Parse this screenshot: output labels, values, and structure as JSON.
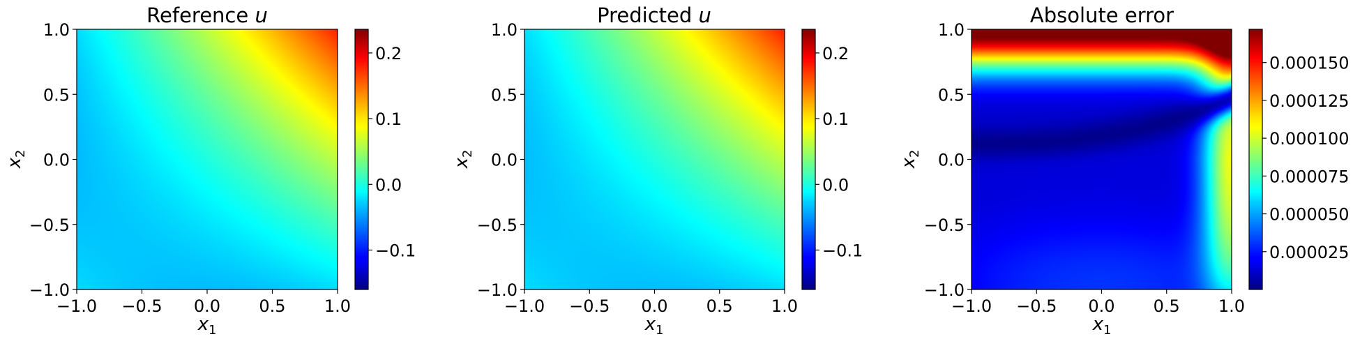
{
  "figure": {
    "colormap": "jet"
  },
  "chart_data": [
    {
      "type": "heatmap",
      "field": "reference",
      "title_prefix": "Reference ",
      "title_var": "u",
      "xlabel": {
        "var": "x",
        "sub": "1"
      },
      "ylabel": {
        "var": "x",
        "sub": "2"
      },
      "xlim": [
        -1.0,
        1.0
      ],
      "ylim": [
        -1.0,
        1.0
      ],
      "xticks": [
        -1.0,
        -0.5,
        0.0,
        0.5,
        1.0
      ],
      "xtick_labels": [
        "−1.0",
        "−0.5",
        "0.0",
        "0.5",
        "1.0"
      ],
      "yticks": [
        -1.0,
        -0.5,
        0.0,
        0.5,
        1.0
      ],
      "ytick_labels": [
        "−1.0",
        "−0.5",
        "0.0",
        "0.5",
        "1.0"
      ],
      "colorbar": {
        "range": [
          -0.16,
          0.236
        ],
        "ticks": [
          -0.1,
          0.0,
          0.1,
          0.2
        ],
        "tick_labels": [
          "−0.1",
          "0.0",
          "0.1",
          "0.2"
        ]
      }
    },
    {
      "type": "heatmap",
      "field": "predicted",
      "title_prefix": "Predicted ",
      "title_var": "u",
      "xlabel": {
        "var": "x",
        "sub": "1"
      },
      "ylabel": {
        "var": "x",
        "sub": "2"
      },
      "xlim": [
        -1.0,
        1.0
      ],
      "ylim": [
        -1.0,
        1.0
      ],
      "xticks": [
        -1.0,
        -0.5,
        0.0,
        0.5,
        1.0
      ],
      "xtick_labels": [
        "−1.0",
        "−0.5",
        "0.0",
        "0.5",
        "1.0"
      ],
      "yticks": [
        -1.0,
        -0.5,
        0.0,
        0.5,
        1.0
      ],
      "ytick_labels": [
        "−1.0",
        "−0.5",
        "0.0",
        "0.5",
        "1.0"
      ],
      "colorbar": {
        "range": [
          -0.16,
          0.236
        ],
        "ticks": [
          -0.1,
          0.0,
          0.1,
          0.2
        ],
        "tick_labels": [
          "−0.1",
          "0.0",
          "0.1",
          "0.2"
        ]
      }
    },
    {
      "type": "heatmap",
      "field": "error",
      "title_prefix": "Absolute error",
      "title_var": "",
      "xlabel": {
        "var": "x",
        "sub": "1"
      },
      "ylabel": {
        "var": "x",
        "sub": "2"
      },
      "xlim": [
        -1.0,
        1.0
      ],
      "ylim": [
        -1.0,
        1.0
      ],
      "xticks": [
        -1.0,
        -0.5,
        0.0,
        0.5,
        1.0
      ],
      "xtick_labels": [
        "−1.0",
        "−0.5",
        "0.0",
        "0.5",
        "1.0"
      ],
      "yticks": [
        -1.0,
        -0.5,
        0.0,
        0.5,
        1.0
      ],
      "ytick_labels": [
        "−1.0",
        "−0.5",
        "0.0",
        "0.5",
        "1.0"
      ],
      "colorbar": {
        "range": [
          0.0,
          0.000172
        ],
        "ticks": [
          2.5e-05,
          5e-05,
          7.5e-05,
          0.0001,
          0.000125,
          0.00015
        ],
        "tick_labels": [
          "0.000025",
          "0.000050",
          "0.000075",
          "0.000100",
          "0.000125",
          "0.000150"
        ]
      }
    }
  ]
}
